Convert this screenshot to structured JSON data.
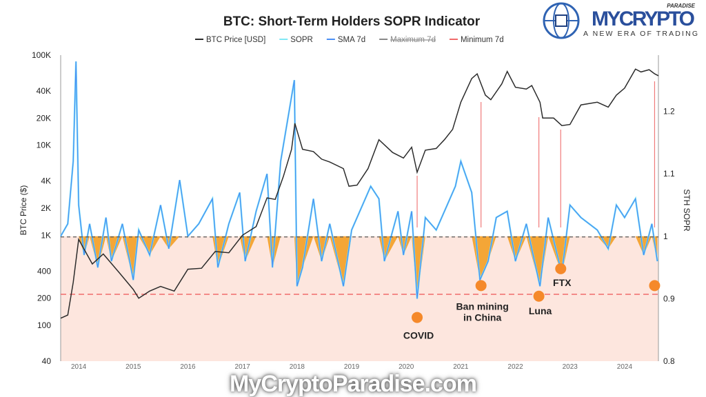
{
  "chart_data": {
    "type": "line",
    "title": "BTC: Short-Term Holders SOPR Indicator",
    "legend": [
      {
        "name": "BTC Price [USD]",
        "color": "#2b2b2b"
      },
      {
        "name": "SOPR",
        "color": "#7fe8f5"
      },
      {
        "name": "SMA 7d",
        "color": "#4a8ff5"
      },
      {
        "name": "Maximum 7d",
        "color": "#888888"
      },
      {
        "name": "Minimum 7d",
        "color": "#f06a6a"
      }
    ],
    "legend_placement": "top",
    "ylabel_left": "BTC Price ($)",
    "ylabel_right": "STH SOPR",
    "y_left_scale": "log",
    "y_left_range": [
      40,
      100000
    ],
    "y_left_ticks": [
      "100K",
      "40K",
      "20K",
      "10K",
      "4K",
      "2K",
      "1K",
      "400",
      "200",
      "100",
      "40"
    ],
    "y_left_tick_values": [
      100000,
      40000,
      20000,
      10000,
      4000,
      2000,
      1000,
      400,
      200,
      100,
      40
    ],
    "y_right_range": [
      0.8,
      1.29
    ],
    "y_right_ticks": [
      "1.2",
      "1.1",
      "1",
      "0.9",
      "0.8"
    ],
    "y_right_tick_values": [
      1.2,
      1.1,
      1.0,
      0.9,
      0.8
    ],
    "x_range": [
      2013.67,
      2024.62
    ],
    "x_ticks": [
      "2014",
      "2015",
      "2016",
      "2017",
      "2018",
      "2019",
      "2020",
      "2021",
      "2022",
      "2023",
      "2024"
    ],
    "btc_price": [
      [
        2013.67,
        120
      ],
      [
        2013.8,
        130
      ],
      [
        2013.9,
        300
      ],
      [
        2014.0,
        900
      ],
      [
        2014.1,
        700
      ],
      [
        2014.25,
        480
      ],
      [
        2014.45,
        620
      ],
      [
        2014.75,
        380
      ],
      [
        2015.0,
        250
      ],
      [
        2015.1,
        200
      ],
      [
        2015.3,
        240
      ],
      [
        2015.5,
        270
      ],
      [
        2015.75,
        240
      ],
      [
        2016.0,
        420
      ],
      [
        2016.25,
        430
      ],
      [
        2016.5,
        660
      ],
      [
        2016.75,
        640
      ],
      [
        2017.0,
        1000
      ],
      [
        2017.25,
        1250
      ],
      [
        2017.45,
        2600
      ],
      [
        2017.6,
        2500
      ],
      [
        2017.75,
        4500
      ],
      [
        2017.9,
        9000
      ],
      [
        2017.96,
        17500
      ],
      [
        2018.1,
        9000
      ],
      [
        2018.3,
        8500
      ],
      [
        2018.45,
        7000
      ],
      [
        2018.6,
        6500
      ],
      [
        2018.85,
        5500
      ],
      [
        2018.95,
        3500
      ],
      [
        2019.1,
        3600
      ],
      [
        2019.3,
        5500
      ],
      [
        2019.5,
        11500
      ],
      [
        2019.75,
        8300
      ],
      [
        2019.95,
        7200
      ],
      [
        2020.1,
        9500
      ],
      [
        2020.2,
        5000
      ],
      [
        2020.35,
        8800
      ],
      [
        2020.55,
        9200
      ],
      [
        2020.7,
        11500
      ],
      [
        2020.85,
        15000
      ],
      [
        2021.0,
        30000
      ],
      [
        2021.2,
        55000
      ],
      [
        2021.3,
        62000
      ],
      [
        2021.45,
        36000
      ],
      [
        2021.55,
        32000
      ],
      [
        2021.75,
        48000
      ],
      [
        2021.85,
        66000
      ],
      [
        2022.0,
        44000
      ],
      [
        2022.2,
        42000
      ],
      [
        2022.3,
        46000
      ],
      [
        2022.45,
        30000
      ],
      [
        2022.5,
        20000
      ],
      [
        2022.7,
        20000
      ],
      [
        2022.85,
        16500
      ],
      [
        2023.0,
        17000
      ],
      [
        2023.2,
        28000
      ],
      [
        2023.5,
        30000
      ],
      [
        2023.7,
        26500
      ],
      [
        2023.85,
        36000
      ],
      [
        2024.0,
        43000
      ],
      [
        2024.2,
        70000
      ],
      [
        2024.3,
        65000
      ],
      [
        2024.45,
        69000
      ],
      [
        2024.55,
        62000
      ],
      [
        2024.62,
        59000
      ]
    ],
    "sopr_sma7d": [
      [
        2013.67,
        1.0
      ],
      [
        2013.8,
        1.02
      ],
      [
        2013.9,
        1.12
      ],
      [
        2013.95,
        1.28
      ],
      [
        2014.0,
        1.05
      ],
      [
        2014.1,
        0.97
      ],
      [
        2014.2,
        1.02
      ],
      [
        2014.35,
        0.95
      ],
      [
        2014.5,
        1.03
      ],
      [
        2014.6,
        0.96
      ],
      [
        2014.8,
        1.02
      ],
      [
        2015.0,
        0.93
      ],
      [
        2015.1,
        1.01
      ],
      [
        2015.3,
        0.97
      ],
      [
        2015.5,
        1.05
      ],
      [
        2015.65,
        0.98
      ],
      [
        2015.85,
        1.09
      ],
      [
        2016.0,
        1.0
      ],
      [
        2016.2,
        1.02
      ],
      [
        2016.45,
        1.06
      ],
      [
        2016.55,
        0.95
      ],
      [
        2016.75,
        1.02
      ],
      [
        2016.95,
        1.07
      ],
      [
        2017.05,
        0.96
      ],
      [
        2017.25,
        1.04
      ],
      [
        2017.45,
        1.1
      ],
      [
        2017.55,
        0.95
      ],
      [
        2017.7,
        1.12
      ],
      [
        2017.95,
        1.25
      ],
      [
        2018.0,
        0.92
      ],
      [
        2018.1,
        0.95
      ],
      [
        2018.3,
        1.06
      ],
      [
        2018.45,
        0.96
      ],
      [
        2018.6,
        1.02
      ],
      [
        2018.85,
        0.92
      ],
      [
        2019.0,
        1.01
      ],
      [
        2019.35,
        1.08
      ],
      [
        2019.5,
        1.06
      ],
      [
        2019.6,
        0.96
      ],
      [
        2019.85,
        1.04
      ],
      [
        2019.95,
        0.97
      ],
      [
        2020.1,
        1.04
      ],
      [
        2020.2,
        0.9
      ],
      [
        2020.35,
        1.03
      ],
      [
        2020.55,
        1.01
      ],
      [
        2020.75,
        1.05
      ],
      [
        2020.9,
        1.08
      ],
      [
        2021.0,
        1.12
      ],
      [
        2021.2,
        1.07
      ],
      [
        2021.35,
        0.93
      ],
      [
        2021.5,
        0.96
      ],
      [
        2021.65,
        1.03
      ],
      [
        2021.85,
        1.04
      ],
      [
        2022.0,
        0.96
      ],
      [
        2022.2,
        1.02
      ],
      [
        2022.45,
        0.92
      ],
      [
        2022.6,
        1.03
      ],
      [
        2022.85,
        0.94
      ],
      [
        2023.0,
        1.05
      ],
      [
        2023.2,
        1.03
      ],
      [
        2023.5,
        1.01
      ],
      [
        2023.7,
        0.98
      ],
      [
        2023.85,
        1.05
      ],
      [
        2024.0,
        1.03
      ],
      [
        2024.2,
        1.06
      ],
      [
        2024.35,
        0.97
      ],
      [
        2024.5,
        1.02
      ],
      [
        2024.6,
        0.96
      ]
    ],
    "maximum_7d": 1.0,
    "minimum_7d": 0.907,
    "shaded_region_below": 1.0,
    "annotations": [
      {
        "label": "COVID",
        "x": 2020.2,
        "sopr": 0.87
      },
      {
        "label": "Ban mining\nin China",
        "x": 2021.37,
        "sopr": 0.921
      },
      {
        "label": "Luna",
        "x": 2022.43,
        "sopr": 0.904
      },
      {
        "label": "FTX",
        "x": 2022.83,
        "sopr": 0.948
      },
      {
        "label": "",
        "x": 2024.55,
        "sopr": 0.921
      }
    ]
  },
  "logo": {
    "brand": "MYCRYPTO",
    "tag": "PARADISE",
    "tagline": "A NEW ERA OF TRADING"
  },
  "watermark": "MyCryptoParadise.com"
}
